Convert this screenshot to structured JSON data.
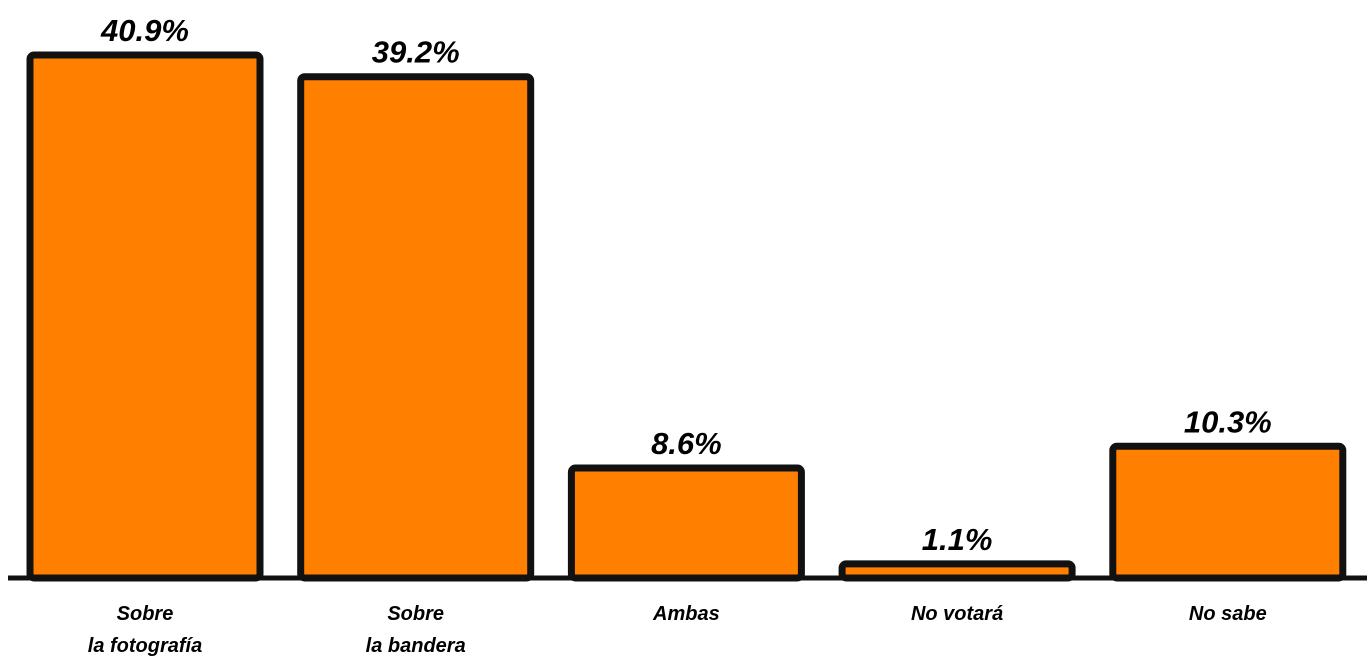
{
  "chart_data": {
    "type": "bar",
    "color": "#ff8000",
    "categories": [
      "Sobre\nla fotografía",
      "Sobre\nla bandera",
      "Ambas",
      "No votará",
      "No sabe"
    ],
    "values": [
      40.9,
      39.2,
      8.6,
      1.1,
      10.3
    ],
    "value_labels": [
      "40.9%",
      "39.2%",
      "8.6%",
      "1.1%",
      "10.3%"
    ]
  }
}
